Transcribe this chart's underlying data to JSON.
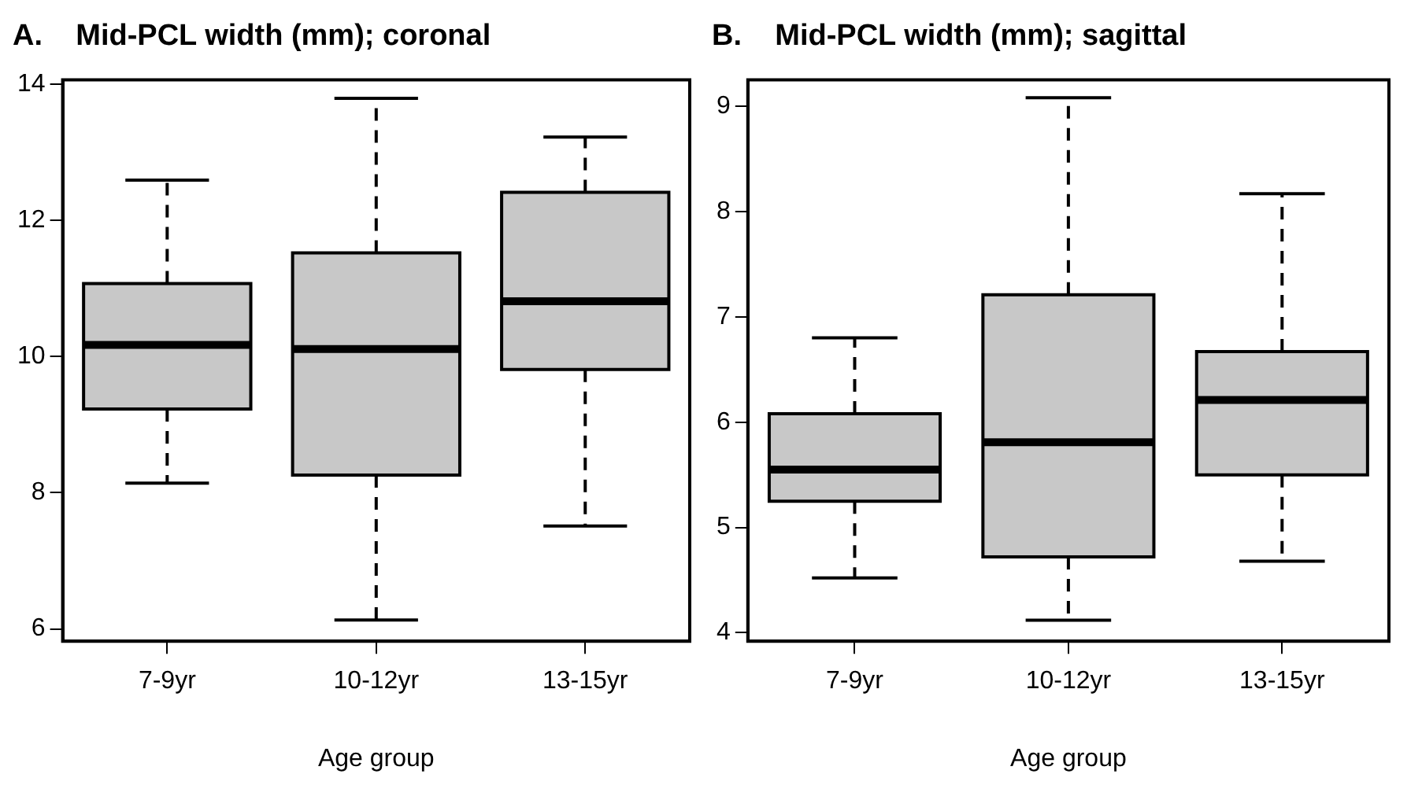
{
  "chart_data": [
    {
      "type": "box",
      "title": "A.    Mid-PCL width (mm); coronal",
      "xlabel": "Age group",
      "categories": [
        "7-9yr",
        "10-12yr",
        "13-15yr"
      ],
      "color": "#c8c8c8",
      "boxes": [
        {
          "low": 8.14,
          "q1": 9.23,
          "median": 10.17,
          "q3": 11.07,
          "high": 12.59
        },
        {
          "low": 6.13,
          "q1": 8.26,
          "median": 10.11,
          "q3": 11.52,
          "high": 13.79
        },
        {
          "low": 7.51,
          "q1": 9.81,
          "median": 10.81,
          "q3": 12.41,
          "high": 13.22
        }
      ],
      "ylim": [
        5.82,
        14.06
      ],
      "yticks": [
        6,
        8,
        10,
        12,
        14
      ]
    },
    {
      "type": "box",
      "title": "B.    Mid-PCL width (mm); sagittal",
      "xlabel": "Age group",
      "categories": [
        "7-9yr",
        "10-12yr",
        "13-15yr"
      ],
      "color": "#c8c8c8",
      "boxes": [
        {
          "low": 4.52,
          "q1": 5.25,
          "median": 5.55,
          "q3": 6.08,
          "high": 6.8
        },
        {
          "low": 4.12,
          "q1": 4.72,
          "median": 5.81,
          "q3": 7.21,
          "high": 9.08
        },
        {
          "low": 4.68,
          "q1": 5.5,
          "median": 6.21,
          "q3": 6.67,
          "high": 8.17
        }
      ],
      "ylim": [
        3.92,
        9.25
      ],
      "yticks": [
        4,
        5,
        6,
        7,
        8,
        9
      ]
    }
  ]
}
